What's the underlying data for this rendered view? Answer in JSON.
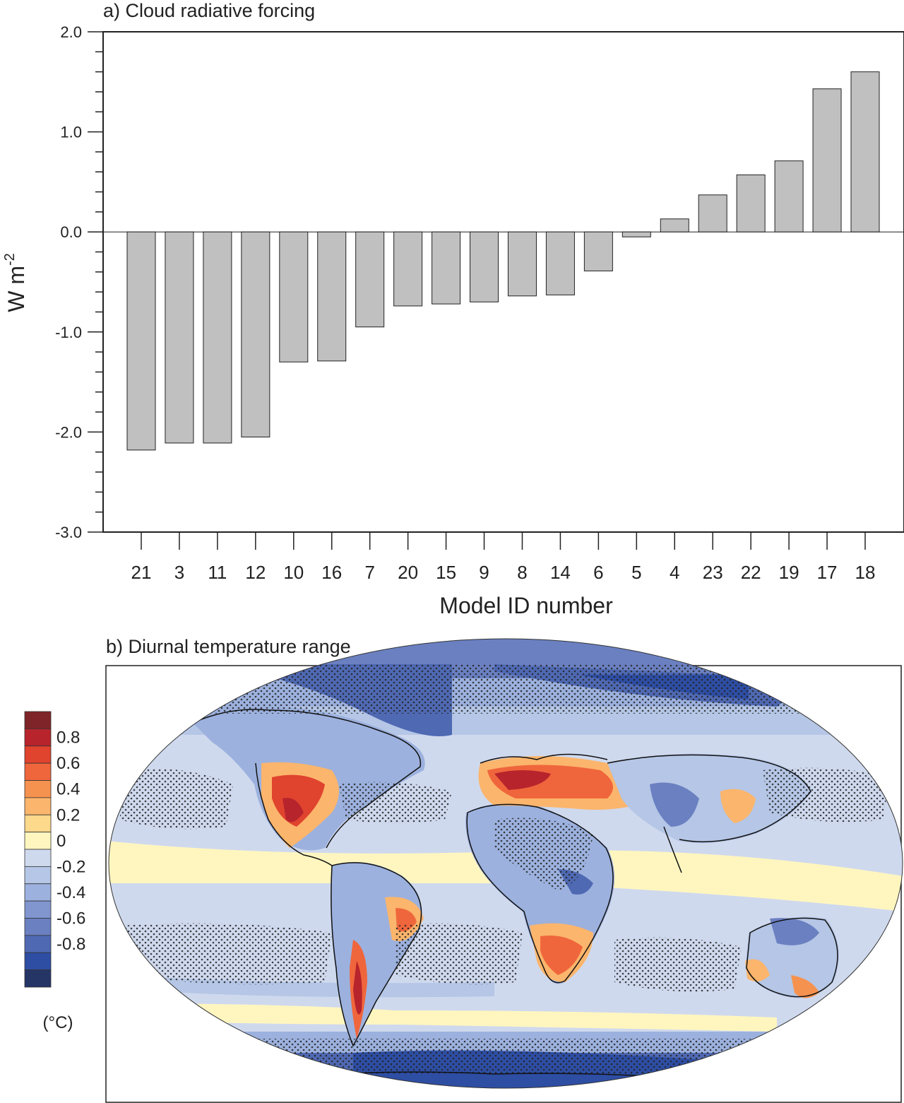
{
  "chart_data": [
    {
      "type": "bar",
      "title": "a) Cloud radiative forcing",
      "xlabel": "Model ID number",
      "ylabel": "W m",
      "ylabel_sup": "-2",
      "ylim": [
        -3.0,
        2.0
      ],
      "yticks": [
        -3.0,
        -2.0,
        -1.0,
        0.0,
        1.0,
        2.0
      ],
      "ytick_labels": [
        "-3.0",
        "-2.0",
        "-1.0",
        "0.0",
        "1.0",
        "2.0"
      ],
      "categories": [
        "21",
        "3",
        "11",
        "12",
        "10",
        "16",
        "7",
        "20",
        "15",
        "9",
        "8",
        "14",
        "6",
        "5",
        "4",
        "23",
        "22",
        "19",
        "17",
        "18"
      ],
      "values": [
        -2.18,
        -2.11,
        -2.11,
        -2.05,
        -1.3,
        -1.29,
        -0.95,
        -0.74,
        -0.72,
        -0.7,
        -0.64,
        -0.63,
        -0.39,
        -0.05,
        0.13,
        0.37,
        0.57,
        0.71,
        1.43,
        1.6
      ],
      "bar_color": "#c0c0c0"
    },
    {
      "type": "heatmap",
      "title": "b) Diurnal temperature range",
      "colorbar_unit": "(°C)",
      "colorbar_labels": [
        "0.8",
        "0.6",
        "0.4",
        "0.2",
        "0",
        "-0.2",
        "-0.4",
        "-0.6",
        "-0.8"
      ],
      "colorbar_colors": [
        "#7f2428",
        "#b8242c",
        "#e0432e",
        "#f0663c",
        "#f6924f",
        "#fbb56c",
        "#fdd98c",
        "#fff6bf",
        "#cfd9ee",
        "#b5c6e6",
        "#9cb1de",
        "#8196cf",
        "#6a80c1",
        "#4f69b3",
        "#2e4ea4",
        "#253566"
      ]
    }
  ]
}
